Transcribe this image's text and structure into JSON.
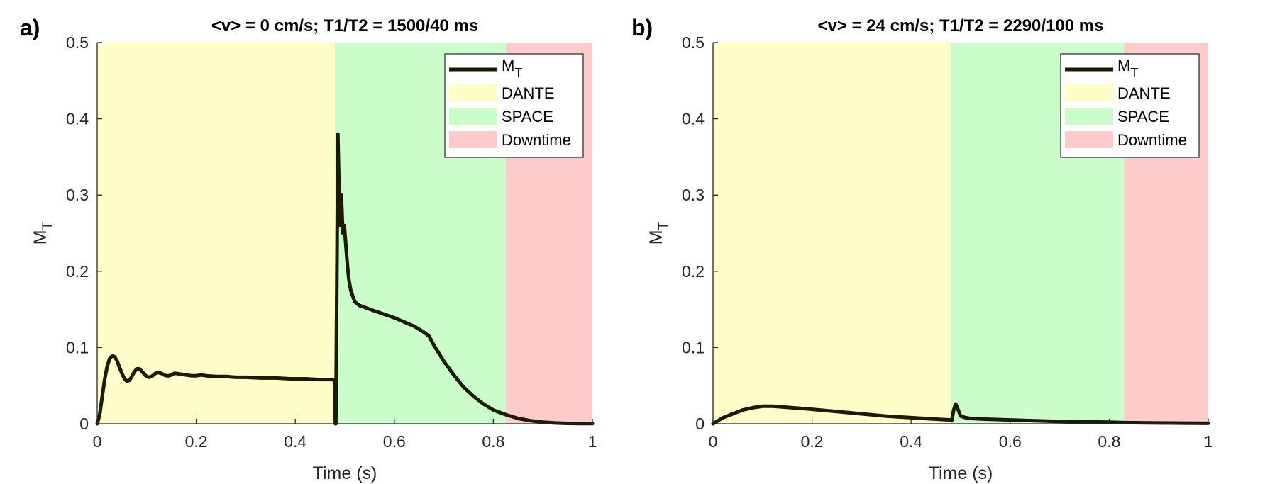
{
  "chart_data": [
    {
      "type": "line",
      "panel_label": "a)",
      "title": "<v> = 0 cm/s; T1/T2 = 1500/40 ms",
      "xlabel": "Time (s)",
      "ylabel": {
        "main": "M",
        "sub": "T"
      },
      "xlim": [
        0,
        1
      ],
      "ylim": [
        0,
        0.5
      ],
      "xticks": [
        0,
        0.2,
        0.4,
        0.6,
        0.8,
        1
      ],
      "xtick_labels": [
        "0",
        "0.2",
        "0.4",
        "0.6",
        "0.8",
        "1"
      ],
      "yticks": [
        0,
        0.1,
        0.2,
        0.3,
        0.4,
        0.5
      ],
      "ytick_labels": [
        "0",
        "0.1",
        "0.2",
        "0.3",
        "0.4",
        "0.5"
      ],
      "regions": [
        {
          "name": "DANTE",
          "start": 0,
          "end": 0.48,
          "color": "#fffdc8"
        },
        {
          "name": "SPACE",
          "start": 0.48,
          "end": 0.825,
          "color": "#cbfdcb"
        },
        {
          "name": "Downtime",
          "start": 0.825,
          "end": 1.0,
          "color": "#fecbcb"
        }
      ],
      "series": [
        {
          "name": "M_T",
          "color": "#1a1a05",
          "x": [
            0,
            0.005,
            0.01,
            0.015,
            0.02,
            0.025,
            0.03,
            0.035,
            0.04,
            0.045,
            0.05,
            0.055,
            0.06,
            0.065,
            0.07,
            0.075,
            0.08,
            0.085,
            0.09,
            0.095,
            0.1,
            0.105,
            0.11,
            0.115,
            0.12,
            0.125,
            0.13,
            0.135,
            0.14,
            0.145,
            0.15,
            0.155,
            0.16,
            0.17,
            0.18,
            0.19,
            0.2,
            0.21,
            0.22,
            0.24,
            0.26,
            0.28,
            0.3,
            0.33,
            0.36,
            0.39,
            0.42,
            0.45,
            0.478,
            0.479,
            0.481,
            0.482,
            0.486,
            0.49,
            0.493,
            0.496,
            0.499,
            0.502,
            0.505,
            0.508,
            0.512,
            0.52,
            0.53,
            0.535,
            0.56,
            0.6,
            0.64,
            0.66,
            0.67,
            0.68,
            0.7,
            0.72,
            0.74,
            0.76,
            0.78,
            0.8,
            0.825,
            0.85,
            0.875,
            0.9,
            0.925,
            0.95,
            0.975,
            1.0
          ],
          "y": [
            0,
            0.012,
            0.035,
            0.058,
            0.075,
            0.085,
            0.089,
            0.088,
            0.083,
            0.074,
            0.066,
            0.059,
            0.056,
            0.057,
            0.062,
            0.068,
            0.072,
            0.072,
            0.069,
            0.065,
            0.062,
            0.061,
            0.062,
            0.065,
            0.067,
            0.067,
            0.066,
            0.064,
            0.063,
            0.063,
            0.064,
            0.066,
            0.066,
            0.065,
            0.064,
            0.063,
            0.063,
            0.064,
            0.063,
            0.062,
            0.062,
            0.061,
            0.061,
            0.06,
            0.06,
            0.059,
            0.059,
            0.058,
            0.058,
            0.058,
            0.0,
            0.0,
            0.38,
            0.26,
            0.3,
            0.25,
            0.26,
            0.235,
            0.21,
            0.19,
            0.175,
            0.16,
            0.155,
            0.154,
            0.148,
            0.139,
            0.128,
            0.12,
            0.115,
            0.103,
            0.082,
            0.064,
            0.048,
            0.036,
            0.026,
            0.018,
            0.012,
            0.007,
            0.004,
            0.002,
            0.001,
            0.0005,
            0.0003,
            0.0002
          ]
        }
      ],
      "legend": {
        "position": "top-right",
        "entries": [
          "M_T",
          "DANTE",
          "SPACE",
          "Downtime"
        ],
        "labels": {
          "mt_main": "M",
          "mt_sub": "T",
          "dante": "DANTE",
          "space": "SPACE",
          "downtime": "Downtime"
        }
      }
    },
    {
      "type": "line",
      "panel_label": "b)",
      "title": "<v> = 24 cm/s; T1/T2 = 2290/100 ms",
      "xlabel": "Time (s)",
      "ylabel": {
        "main": "M",
        "sub": "T"
      },
      "xlim": [
        0,
        1
      ],
      "ylim": [
        0,
        0.5
      ],
      "xticks": [
        0,
        0.2,
        0.4,
        0.6,
        0.8,
        1
      ],
      "xtick_labels": [
        "0",
        "0.2",
        "0.4",
        "0.6",
        "0.8",
        "1"
      ],
      "yticks": [
        0,
        0.1,
        0.2,
        0.3,
        0.4,
        0.5
      ],
      "ytick_labels": [
        "0",
        "0.1",
        "0.2",
        "0.3",
        "0.4",
        "0.5"
      ],
      "regions": [
        {
          "name": "DANTE",
          "start": 0,
          "end": 0.48,
          "color": "#fffdc8"
        },
        {
          "name": "SPACE",
          "start": 0.48,
          "end": 0.83,
          "color": "#cbfdcb"
        },
        {
          "name": "Downtime",
          "start": 0.83,
          "end": 1.0,
          "color": "#fecbcb"
        }
      ],
      "series": [
        {
          "name": "M_T",
          "color": "#1a1a05",
          "x": [
            0,
            0.01,
            0.02,
            0.04,
            0.06,
            0.08,
            0.1,
            0.12,
            0.14,
            0.16,
            0.2,
            0.25,
            0.3,
            0.35,
            0.4,
            0.45,
            0.48,
            0.482,
            0.486,
            0.49,
            0.494,
            0.5,
            0.51,
            0.52,
            0.55,
            0.6,
            0.65,
            0.7,
            0.75,
            0.8,
            0.83,
            0.9,
            0.95,
            1.0
          ],
          "y": [
            0,
            0.004,
            0.008,
            0.013,
            0.018,
            0.021,
            0.023,
            0.023,
            0.022,
            0.021,
            0.019,
            0.016,
            0.013,
            0.01,
            0.008,
            0.006,
            0.005,
            0.004,
            0.018,
            0.026,
            0.02,
            0.01,
            0.008,
            0.007,
            0.006,
            0.005,
            0.004,
            0.003,
            0.0025,
            0.002,
            0.0015,
            0.001,
            0.0008,
            0.0006
          ]
        }
      ],
      "legend": {
        "position": "top-right",
        "entries": [
          "M_T",
          "DANTE",
          "SPACE",
          "Downtime"
        ],
        "labels": {
          "mt_main": "M",
          "mt_sub": "T",
          "dante": "DANTE",
          "space": "SPACE",
          "downtime": "Downtime"
        }
      }
    }
  ]
}
